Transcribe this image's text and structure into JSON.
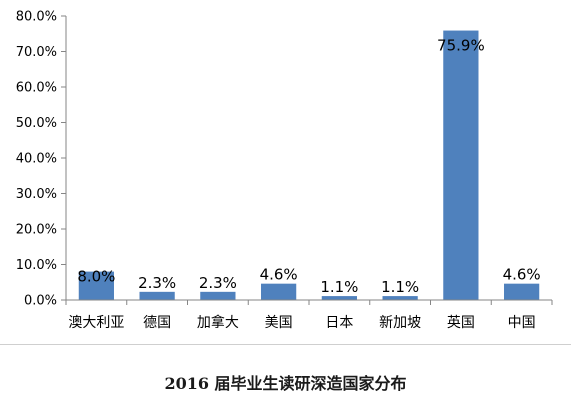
{
  "chart_data": {
    "type": "bar",
    "title": "2016 届毕业生读研深造国家分布",
    "categories": [
      "澳大利亚",
      "德国",
      "加拿大",
      "美国",
      "日本",
      "新加坡",
      "英国",
      "中国"
    ],
    "values": [
      8.0,
      2.3,
      2.3,
      4.6,
      1.1,
      1.1,
      75.9,
      4.6
    ],
    "data_labels": [
      "8.0%",
      "2.3%",
      "2.3%",
      "4.6%",
      "1.1%",
      "1.1%",
      "75.9%",
      "4.6%"
    ],
    "yticks": [
      "0.0%",
      "10.0%",
      "20.0%",
      "30.0%",
      "40.0%",
      "50.0%",
      "60.0%",
      "70.0%",
      "80.0%"
    ],
    "ylim": [
      0,
      80
    ],
    "xlabel": "",
    "ylabel": "",
    "grid": false,
    "legend": "none",
    "bar_color": "#4f81bd",
    "axis_color": "#868686"
  }
}
